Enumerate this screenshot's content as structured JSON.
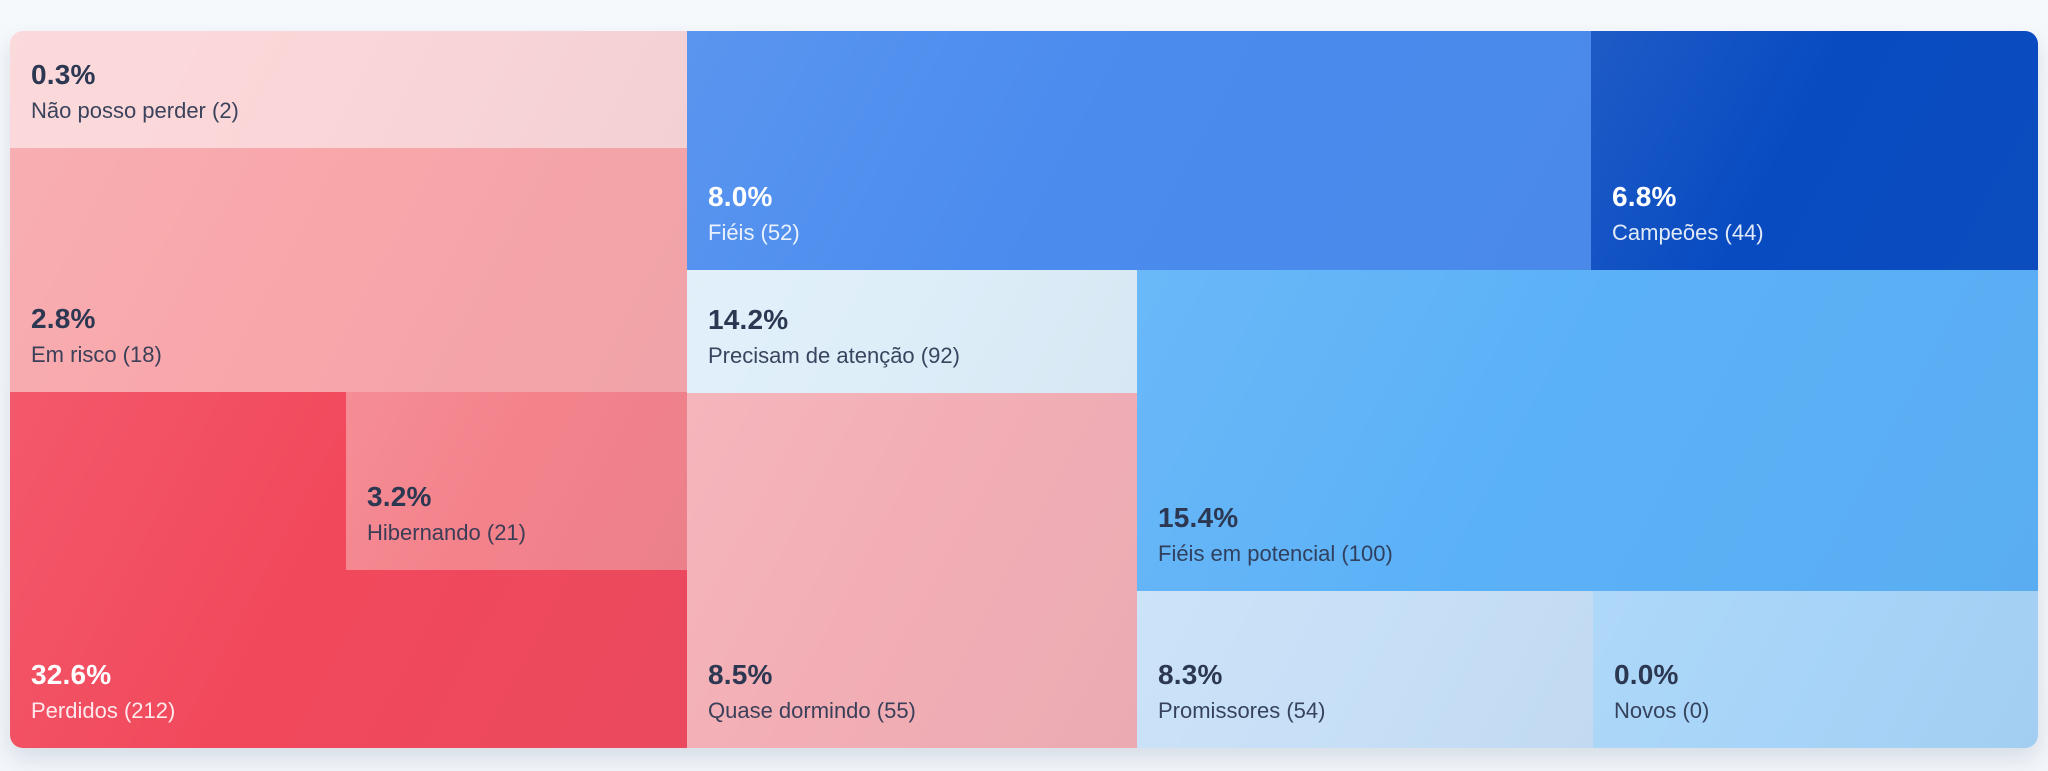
{
  "page": {
    "background_color": "#f4f7fb",
    "text_color_dark": "#2c3752",
    "text_color_light": "#ffffff"
  },
  "chart_data": {
    "type": "treemap",
    "title": "",
    "legend": "none",
    "value_format": "percent + absolute count in parentheses",
    "segments": [
      {
        "id": "nao_posso_perder",
        "label": "Não posso perder",
        "count": 2,
        "percent": 0.3,
        "percent_label": "0.3%",
        "label_with_count": "Não posso perder (2)",
        "color": "#fbd6d8",
        "text": "dark"
      },
      {
        "id": "em_risco",
        "label": "Em risco",
        "count": 18,
        "percent": 2.8,
        "percent_label": "2.8%",
        "label_with_count": "Em risco (18)",
        "color": "#f8a6aa",
        "text": "dark"
      },
      {
        "id": "perdidos",
        "label": "Perdidos",
        "count": 212,
        "percent": 32.6,
        "percent_label": "32.6%",
        "label_with_count": "Perdidos (212)",
        "color": "#f2485c",
        "text": "light"
      },
      {
        "id": "hibernando",
        "label": "Hibernando",
        "count": 21,
        "percent": 3.2,
        "percent_label": "3.2%",
        "label_with_count": "Hibernando (21)",
        "color": "#f4828b",
        "text": "dark"
      },
      {
        "id": "fieis",
        "label": "Fiéis",
        "count": 52,
        "percent": 8.0,
        "percent_label": "8.0%",
        "label_with_count": "Fiéis (52)",
        "color": "#4a8bee",
        "text": "light"
      },
      {
        "id": "campeoes",
        "label": "Campeões",
        "count": 44,
        "percent": 6.8,
        "percent_label": "6.8%",
        "label_with_count": "Campeões (44)",
        "color": "#084bc1",
        "text": "light"
      },
      {
        "id": "precisam_de_atencao",
        "label": "Precisam de atenção",
        "count": 92,
        "percent": 14.2,
        "percent_label": "14.2%",
        "label_with_count": "Precisam de atenção (92)",
        "color": "#deeef9",
        "text": "dark"
      },
      {
        "id": "quase_dormindo",
        "label": "Quase dormindo",
        "count": 55,
        "percent": 8.5,
        "percent_label": "8.5%",
        "label_with_count": "Quase dormindo (55)",
        "color": "#f3aeb5",
        "text": "dark"
      },
      {
        "id": "fieis_em_potencial",
        "label": "Fiéis em potencial",
        "count": 100,
        "percent": 15.4,
        "percent_label": "15.4%",
        "label_with_count": "Fiéis em potencial (100)",
        "color": "#5bb1f7",
        "text": "dark"
      },
      {
        "id": "promissores",
        "label": "Promissores",
        "count": 54,
        "percent": 8.3,
        "percent_label": "8.3%",
        "label_with_count": "Promissores (54)",
        "color": "#c7e0f7",
        "text": "dark"
      },
      {
        "id": "novos",
        "label": "Novos",
        "count": 0,
        "percent": 0.0,
        "percent_label": "0.0%",
        "label_with_count": "Novos (0)",
        "color": "#a7d4f8",
        "text": "dark"
      }
    ]
  }
}
